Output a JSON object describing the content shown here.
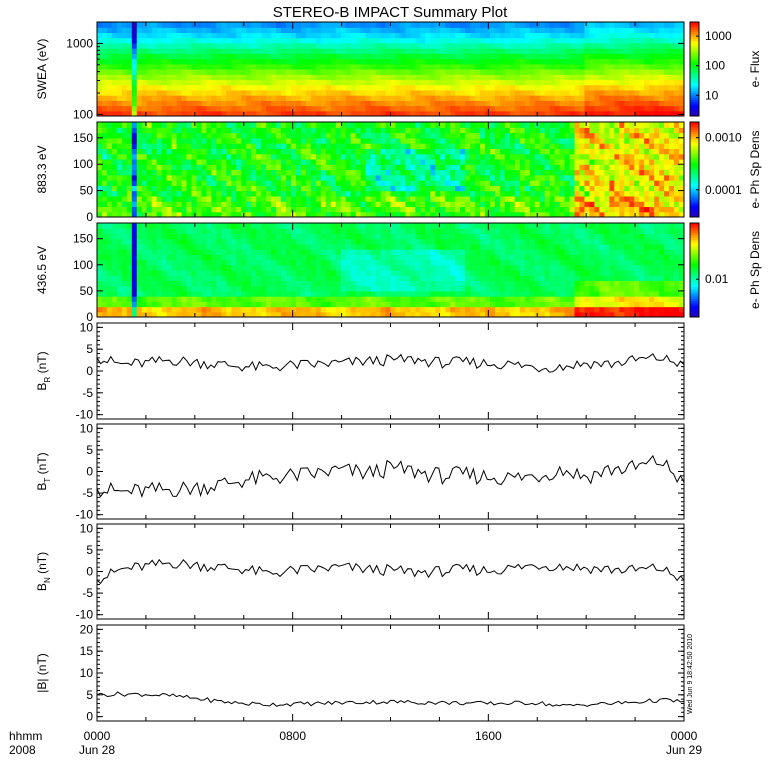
{
  "title": "STEREO-B IMPACT Summary Plot",
  "timestamp": "Wed Jun  9 18:42:50 2010",
  "time_axis": {
    "corner_labels": [
      "hhmm",
      "2008"
    ],
    "ticks": [
      {
        "hour": 0,
        "lines": [
          "0000",
          "Jun 28"
        ]
      },
      {
        "hour": 8,
        "lines": [
          "0800",
          ""
        ]
      },
      {
        "hour": 16,
        "lines": [
          "1600",
          ""
        ]
      },
      {
        "hour": 24,
        "lines": [
          "0000",
          "Jun 29"
        ]
      }
    ],
    "range_hours": [
      0,
      24
    ]
  },
  "colors": {
    "spectrogram": [
      "#2a00b0",
      "#0000ff",
      "#0080ff",
      "#00ffff",
      "#00ff80",
      "#00ff00",
      "#80ff00",
      "#ffff00",
      "#ff8000",
      "#ff0000"
    ],
    "line": "#000000",
    "frame": "#000000"
  },
  "chart_data": [
    {
      "type": "heatmap",
      "panel": "swea",
      "ylabel": "SWEA (eV)",
      "yscale": "log",
      "ylim": [
        95,
        2000
      ],
      "yticks": [
        {
          "value": 100,
          "label": "100"
        },
        {
          "value": 1000,
          "label": "1000"
        }
      ],
      "colorbar": {
        "label": "e- Flux",
        "scale": "log",
        "range": [
          2,
          3000
        ],
        "ticks": [
          {
            "value": 10,
            "label": "10"
          },
          {
            "value": 100,
            "label": "100"
          },
          {
            "value": 1000,
            "label": "1000"
          }
        ]
      },
      "profile": {
        "y": [
          100,
          130,
          200,
          300,
          500,
          800,
          1200,
          2000
        ],
        "level": [
          0.95,
          0.9,
          0.82,
          0.72,
          0.58,
          0.45,
          0.32,
          0.22
        ]
      }
    },
    {
      "type": "heatmap",
      "panel": "pad883",
      "ylabel": "883.3 eV",
      "ylim": [
        0,
        180
      ],
      "yticks": [
        {
          "value": 0,
          "label": "0"
        },
        {
          "value": 50,
          "label": "50"
        },
        {
          "value": 100,
          "label": "100"
        },
        {
          "value": 150,
          "label": "150"
        }
      ],
      "colorbar": {
        "label": "e- Ph Sp Dens",
        "scale": "log",
        "range": [
          3e-05,
          0.002
        ],
        "ticks": [
          {
            "value": 0.0001,
            "label": "0.0001"
          },
          {
            "value": 0.001,
            "label": "0.0010"
          }
        ]
      }
    },
    {
      "type": "heatmap",
      "panel": "pad436",
      "ylabel": "436.5 eV",
      "ylim": [
        0,
        180
      ],
      "yticks": [
        {
          "value": 0,
          "label": "0"
        },
        {
          "value": 50,
          "label": "50"
        },
        {
          "value": 100,
          "label": "100"
        },
        {
          "value": 150,
          "label": "150"
        }
      ],
      "colorbar": {
        "label": "e- Ph Sp Dens",
        "scale": "log",
        "range": [
          0.003,
          0.06
        ],
        "ticks": [
          {
            "value": 0.01,
            "label": "0.01"
          }
        ]
      }
    },
    {
      "type": "line",
      "panel": "br",
      "ylabel": "B",
      "ylabel_sub": "R",
      "ylabel_unit": "(nT)",
      "ylim": [
        -11,
        11
      ],
      "yticks": [
        {
          "value": -10,
          "label": "-10"
        },
        {
          "value": -5,
          "label": "-5"
        },
        {
          "value": 0,
          "label": "0"
        },
        {
          "value": 5,
          "label": "5"
        },
        {
          "value": 10,
          "label": "10"
        }
      ],
      "x": [
        0,
        1,
        2,
        3,
        4,
        5,
        6,
        7,
        8,
        9,
        10,
        11,
        12,
        13,
        14,
        15,
        16,
        17,
        18,
        19,
        20,
        21,
        22,
        23,
        24
      ],
      "y": [
        3,
        1.5,
        1.8,
        2.5,
        2,
        1.5,
        1,
        0.8,
        1.3,
        1.5,
        1.8,
        2.2,
        2.5,
        2.6,
        1.9,
        2.0,
        1.7,
        1.5,
        0.8,
        1.0,
        1.8,
        1.6,
        2.5,
        3.0,
        1.5
      ]
    },
    {
      "type": "line",
      "panel": "bt",
      "ylabel": "B",
      "ylabel_sub": "T",
      "ylabel_unit": "(nT)",
      "ylim": [
        -11,
        11
      ],
      "yticks": [
        {
          "value": -10,
          "label": "-10"
        },
        {
          "value": -5,
          "label": "-5"
        },
        {
          "value": 0,
          "label": "0"
        },
        {
          "value": 5,
          "label": "5"
        },
        {
          "value": 10,
          "label": "10"
        }
      ],
      "x": [
        0,
        1,
        2,
        3,
        4,
        5,
        6,
        7,
        8,
        9,
        10,
        11,
        12,
        13,
        14,
        15,
        16,
        17,
        18,
        19,
        20,
        21,
        22,
        23,
        24
      ],
      "y": [
        -4,
        -4.8,
        -4.5,
        -4.2,
        -3.8,
        -3.0,
        -2.0,
        -1.5,
        -1.0,
        -0.5,
        0.3,
        -0.5,
        0.8,
        0.0,
        -1.0,
        -0.8,
        -1.2,
        -1.5,
        -1.0,
        0.5,
        -1.2,
        0.5,
        0.8,
        2.5,
        -2.5
      ]
    },
    {
      "type": "line",
      "panel": "bn",
      "ylabel": "B",
      "ylabel_sub": "N",
      "ylabel_unit": "(nT)",
      "ylim": [
        -11,
        11
      ],
      "yticks": [
        {
          "value": -10,
          "label": "-10"
        },
        {
          "value": -5,
          "label": "-5"
        },
        {
          "value": 0,
          "label": "0"
        },
        {
          "value": 5,
          "label": "5"
        },
        {
          "value": 10,
          "label": "10"
        }
      ],
      "x": [
        0,
        1,
        2,
        3,
        4,
        5,
        6,
        7,
        8,
        9,
        10,
        11,
        12,
        13,
        14,
        15,
        16,
        17,
        18,
        19,
        20,
        21,
        22,
        23,
        24
      ],
      "y": [
        -2,
        0.5,
        1.2,
        2.0,
        1.5,
        1.0,
        0.5,
        -0.5,
        0.2,
        0.5,
        1.0,
        0.5,
        0.3,
        -0.2,
        0.0,
        0.5,
        0.2,
        0.8,
        1.5,
        1.2,
        0.8,
        0.5,
        0.3,
        0.8,
        -2.0
      ]
    },
    {
      "type": "line",
      "panel": "bmag",
      "ylabel": "|B|",
      "ylabel_unit": "(nT)",
      "ylim": [
        -1,
        21
      ],
      "yticks": [
        {
          "value": 0,
          "label": "0"
        },
        {
          "value": 5,
          "label": "5"
        },
        {
          "value": 10,
          "label": "10"
        },
        {
          "value": 15,
          "label": "15"
        },
        {
          "value": 20,
          "label": "20"
        }
      ],
      "x": [
        0,
        1,
        2,
        3,
        4,
        5,
        6,
        7,
        8,
        9,
        10,
        11,
        12,
        13,
        14,
        15,
        16,
        17,
        18,
        19,
        20,
        21,
        22,
        23,
        24
      ],
      "y": [
        5.0,
        5.2,
        5.1,
        4.8,
        4.2,
        3.5,
        3.0,
        2.8,
        2.9,
        3.0,
        3.2,
        3.3,
        3.4,
        3.3,
        3.2,
        3.1,
        3.0,
        3.1,
        3.2,
        2.4,
        2.8,
        3.0,
        3.3,
        3.8,
        3.5
      ]
    }
  ]
}
